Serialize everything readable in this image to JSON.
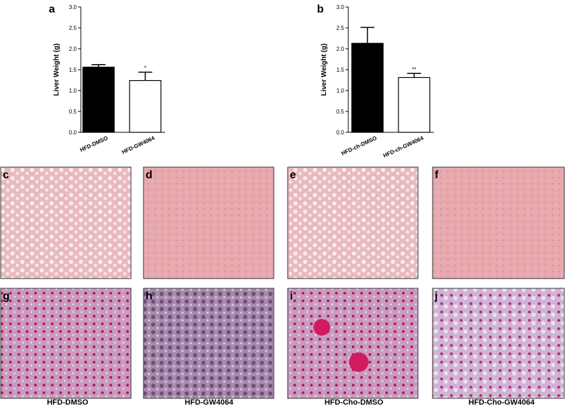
{
  "chart_data": [
    {
      "type": "bar",
      "panel": "a",
      "y_label": "Liver Weight (g)",
      "categories": [
        "HFD-DMSO",
        "HFD-GW4064"
      ],
      "values": [
        1.56,
        1.24
      ],
      "errors": [
        0.06,
        0.2
      ],
      "colors": [
        "#000000",
        "#ffffff"
      ],
      "significance": [
        null,
        "*"
      ],
      "ylim": [
        0,
        3
      ],
      "yticks": [
        {
          "value": 0,
          "label": "0.0"
        },
        0.5,
        {
          "value": 1,
          "label": "1.0"
        },
        1.5,
        {
          "value": 2,
          "label": "2.0"
        },
        2.5,
        {
          "value": 3,
          "label": "3.0"
        }
      ]
    },
    {
      "type": "bar",
      "panel": "b",
      "y_label": "Liver Weight (g)",
      "categories": [
        "HFD-ch-DMSO",
        "HFD-ch-GW4064"
      ],
      "values": [
        2.13,
        1.31
      ],
      "errors": [
        0.38,
        0.1
      ],
      "colors": [
        "#000000",
        "#ffffff"
      ],
      "significance": [
        null,
        "**"
      ],
      "ylim": [
        0,
        3
      ],
      "yticks": [
        {
          "value": 0,
          "label": "0.0"
        },
        0.5,
        {
          "value": 1,
          "label": "1.0"
        },
        1.5,
        {
          "value": 2,
          "label": "2.0"
        },
        2.5,
        {
          "value": 3,
          "label": "3.0"
        }
      ]
    }
  ],
  "image_panels": [
    "c",
    "d",
    "e",
    "f",
    "g",
    "h",
    "i",
    "j"
  ],
  "captions": [
    "HFD-DMSO",
    "HFD-GW4064",
    "HFD-Cho-DMSO",
    "HFD-Cho-GW4064"
  ]
}
